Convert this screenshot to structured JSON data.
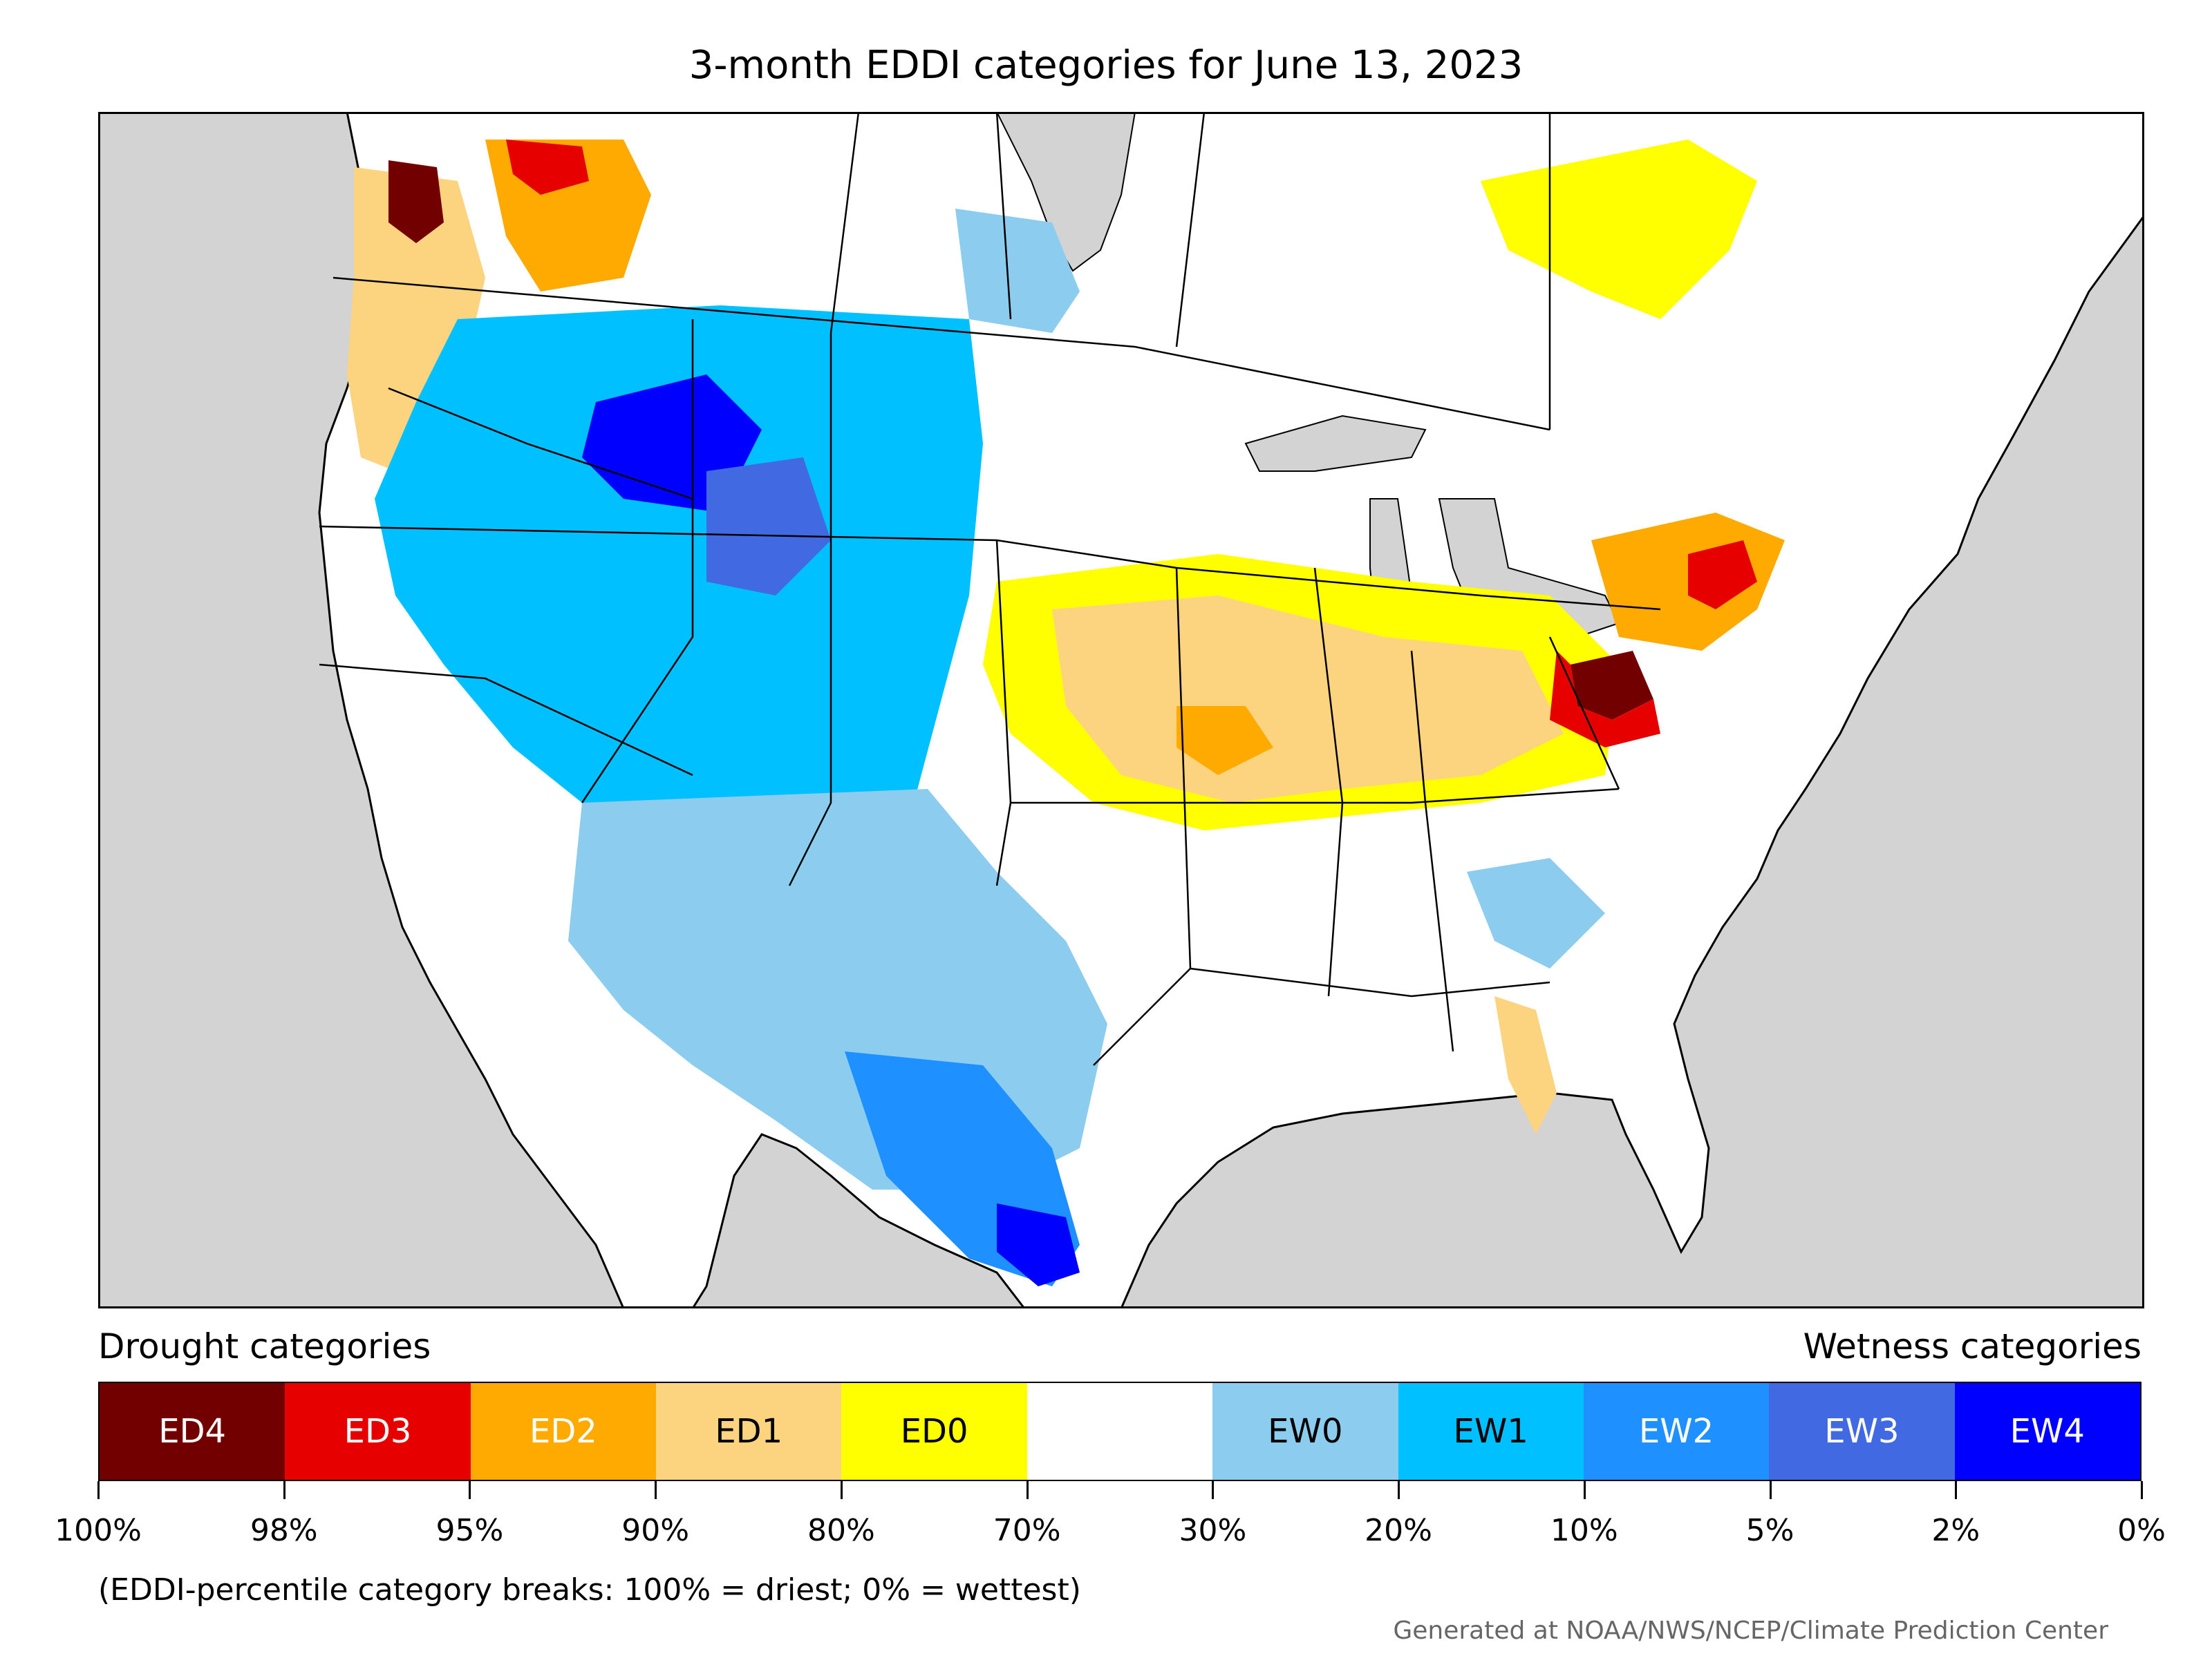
{
  "title": "3-month EDDI categories for June 13, 2023",
  "legend": {
    "drought_label": "Drought categories",
    "wetness_label": "Wetness categories",
    "categories": [
      {
        "label": "ED4",
        "color": "#730000",
        "text_color": "#ffffff"
      },
      {
        "label": "ED3",
        "color": "#e60000",
        "text_color": "#ffffff"
      },
      {
        "label": "ED2",
        "color": "#ffaa00",
        "text_color": "#ffffff"
      },
      {
        "label": "ED1",
        "color": "#fcd37f",
        "text_color": "#000000"
      },
      {
        "label": "ED0",
        "color": "#ffff00",
        "text_color": "#000000"
      },
      {
        "label": "",
        "color": "#ffffff",
        "text_color": "#000000"
      },
      {
        "label": "EW0",
        "color": "#8ccdef",
        "text_color": "#000000"
      },
      {
        "label": "EW1",
        "color": "#00c0ff",
        "text_color": "#000000"
      },
      {
        "label": "EW2",
        "color": "#1e90ff",
        "text_color": "#ffffff"
      },
      {
        "label": "EW3",
        "color": "#4169e1",
        "text_color": "#ffffff"
      },
      {
        "label": "EW4",
        "color": "#0000ff",
        "text_color": "#ffffff"
      }
    ],
    "tick_labels": [
      "100%",
      "98%",
      "95%",
      "90%",
      "80%",
      "70%",
      "30%",
      "20%",
      "10%",
      "5%",
      "2%",
      "0%"
    ]
  },
  "note": "(EDDI-percentile category breaks: 100% = driest; 0% = wettest)",
  "credit": "Generated at NOAA/NWS/NCEP/Climate Prediction Center",
  "map": {
    "ocean_color": "#d3d3d3",
    "land_color": "#ffffff",
    "regions": [
      {
        "name": "pacific-northwest-drought",
        "category": "ED1"
      },
      {
        "name": "washington-extreme-drought",
        "category": "ED4"
      },
      {
        "name": "alberta-drought",
        "category": "ED2"
      },
      {
        "name": "great-basin-wetness",
        "category": "EW1"
      },
      {
        "name": "wyoming-wetness",
        "category": "EW4"
      },
      {
        "name": "southwest-wetness",
        "category": "EW0"
      },
      {
        "name": "texas-gulf-wetness",
        "category": "EW3"
      },
      {
        "name": "midwest-drought",
        "category": "ED1"
      },
      {
        "name": "mid-atlantic-drought",
        "category": "ED2"
      },
      {
        "name": "chesapeake-extreme-drought",
        "category": "ED4"
      },
      {
        "name": "quebec-drought",
        "category": "ED0"
      },
      {
        "name": "florida-drought",
        "category": "ED1"
      }
    ]
  }
}
